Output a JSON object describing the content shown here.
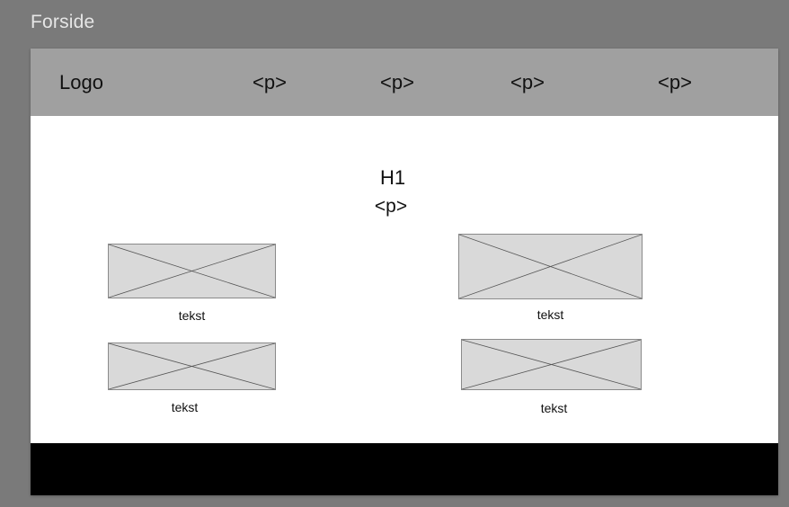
{
  "frame": {
    "label": "Forside"
  },
  "nav": {
    "logo": "Logo",
    "items": [
      "<p>",
      "<p>",
      "<p>",
      "<p>"
    ]
  },
  "hero": {
    "title": "H1",
    "paragraph": "<p>"
  },
  "cards": [
    {
      "caption": "tekst"
    },
    {
      "caption": "tekst"
    },
    {
      "caption": "tekst"
    },
    {
      "caption": "tekst"
    }
  ],
  "colors": {
    "canvas_background": "#7a7a7a",
    "nav_background": "#a0a0a0",
    "placeholder_fill": "#d9d9d9",
    "footer_background": "#000000"
  }
}
